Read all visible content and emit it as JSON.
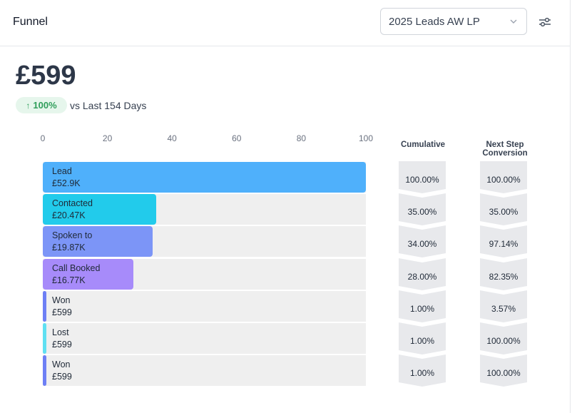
{
  "header": {
    "title": "Funnel",
    "select_value": "2025 Leads AW LP",
    "filter_icon": "sliders-icon",
    "chevron_icon": "chevron-down-icon"
  },
  "summary": {
    "value": "£599",
    "change": "100%",
    "change_icon": "arrow-up-icon",
    "comparison": "vs Last 154 Days"
  },
  "colors": {
    "lead": "#4fb0fb",
    "contacted": "#22cbeb",
    "spoken": "#7c95f7",
    "booked": "#a78bfa",
    "won": "#6d7ff5",
    "lost": "#5fe0f2",
    "badge_green": "#2f9e5a"
  },
  "chart_data": {
    "type": "bar",
    "orientation": "horizontal",
    "xlim": [
      0,
      100
    ],
    "x_ticks": [
      "0",
      "20",
      "40",
      "60",
      "80",
      "100"
    ],
    "columns": {
      "cumulative": "Cumulative",
      "next_step_line1": "Next Step",
      "next_step_line2": "Conversion"
    },
    "stages": [
      {
        "name": "Lead",
        "amount": "£52.9K",
        "percent": 100,
        "cumulative": "100.00%",
        "next_step": "100.00%",
        "color": "#4fb0fb"
      },
      {
        "name": "Contacted",
        "amount": "£20.47K",
        "percent": 35,
        "cumulative": "35.00%",
        "next_step": "35.00%",
        "color": "#22cbeb"
      },
      {
        "name": "Spoken to",
        "amount": "£19.87K",
        "percent": 34,
        "cumulative": "34.00%",
        "next_step": "97.14%",
        "color": "#7c95f7"
      },
      {
        "name": "Call Booked",
        "amount": "£16.77K",
        "percent": 28,
        "cumulative": "28.00%",
        "next_step": "82.35%",
        "color": "#a78bfa"
      },
      {
        "name": "Won",
        "amount": "£599",
        "percent": 1,
        "cumulative": "1.00%",
        "next_step": "3.57%",
        "color": "#6d7ff5"
      },
      {
        "name": "Lost",
        "amount": "£599",
        "percent": 1,
        "cumulative": "1.00%",
        "next_step": "100.00%",
        "color": "#5fe0f2"
      },
      {
        "name": "Won",
        "amount": "£599",
        "percent": 1,
        "cumulative": "1.00%",
        "next_step": "100.00%",
        "color": "#6d7ff5"
      }
    ]
  }
}
